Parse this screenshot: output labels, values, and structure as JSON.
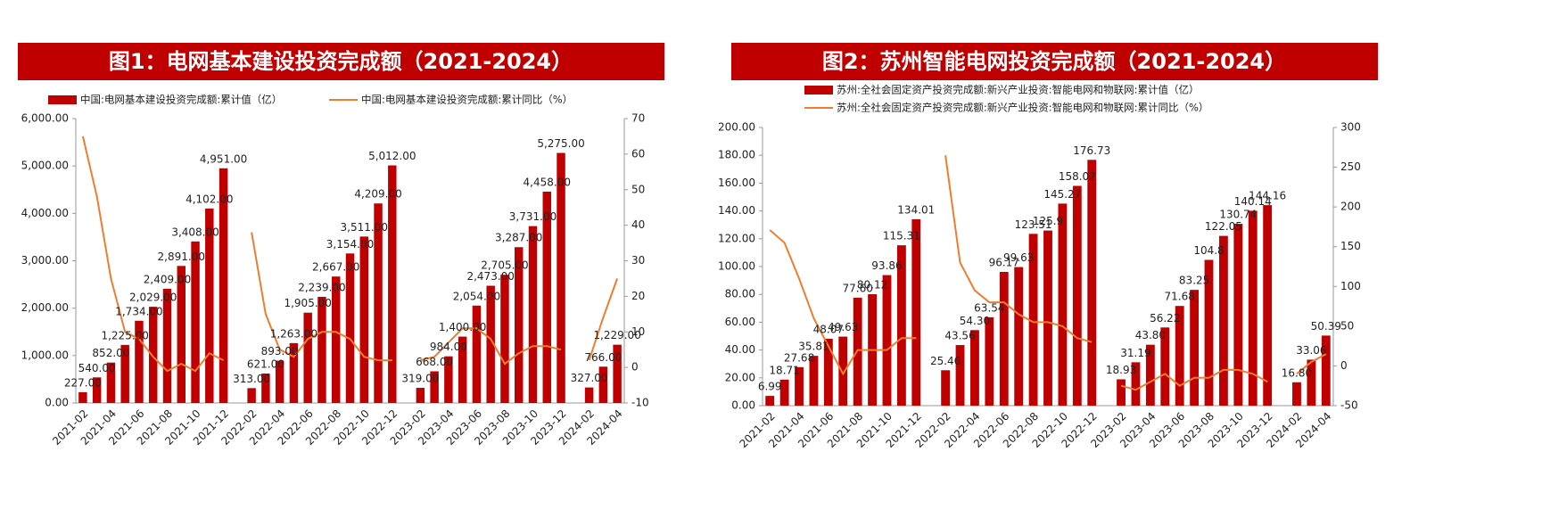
{
  "chart_data": [
    {
      "type": "combo",
      "title": "图1：电网基本建设投资完成额（2021-2024）",
      "categories": [
        "2021-02",
        null,
        "2021-04",
        null,
        "2021-06",
        null,
        "2021-08",
        null,
        "2021-10",
        null,
        "2021-12",
        null,
        "2022-02",
        null,
        "2022-04",
        null,
        "2022-06",
        null,
        "2022-08",
        null,
        "2022-10",
        null,
        "2022-12",
        null,
        "2023-02",
        null,
        "2023-04",
        null,
        "2023-06",
        null,
        "2023-08",
        null,
        "2023-10",
        null,
        "2023-12",
        null,
        "2024-02",
        null,
        "2024-04"
      ],
      "series": [
        {
          "name": "中国:电网基本建设投资完成额:累计值（亿）",
          "type": "bar",
          "color": "#c00000",
          "values": [
            227,
            540,
            852,
            1225,
            1734,
            2029,
            2409,
            2891,
            3408,
            4102,
            4951,
            null,
            313,
            621,
            893,
            1263,
            1905,
            2239,
            2667,
            3154,
            3511,
            4209,
            5012,
            null,
            319,
            668,
            984,
            1400,
            2054,
            2473,
            2705,
            3287,
            3731,
            4458,
            5275,
            null,
            327,
            766,
            1229
          ],
          "value_labels": [
            "227.00",
            "540.00",
            "852.00",
            "1,225.00",
            "1,734.00",
            "2,029.00",
            "2,409.00",
            "2,891.00",
            "3,408.00",
            "4,102.00",
            "4,951.00",
            null,
            "313.00",
            "621.00",
            "893.00",
            "1,263.00",
            "1,905.00",
            "2,239.00",
            "2,667.00",
            "3,154.00",
            "3,511.00",
            "4,209.00",
            "5,012.00",
            null,
            "319.00",
            "668.00",
            "984.00",
            "1,400.00",
            "2,054.00",
            "2,473.00",
            "2,705.00",
            "3,287.00",
            "3,731.00",
            "4,458.00",
            "5,275.00",
            null,
            "327.00",
            "766.00",
            "1,229.00"
          ]
        },
        {
          "name": "中国:电网基本建设投资完成额:累计同比（%）",
          "type": "line",
          "axis": "y2",
          "color": "#ed7d31",
          "values": [
            65,
            48,
            25,
            10,
            8,
            3,
            -1,
            1,
            -1,
            4,
            2,
            null,
            38,
            15,
            5,
            3,
            8,
            10,
            10,
            8,
            3,
            2,
            2,
            null,
            2,
            3,
            7,
            11,
            11,
            8,
            1,
            4,
            6,
            6,
            5,
            null,
            2,
            14,
            25
          ]
        }
      ],
      "ylim": [
        0,
        6000
      ],
      "yticks": [
        {
          "value": 0,
          "label": "0.00"
        },
        {
          "value": 1000,
          "label": "1,000.00"
        },
        {
          "value": 2000,
          "label": "2,000.00"
        },
        {
          "value": 3000,
          "label": "3,000.00"
        },
        {
          "value": 4000,
          "label": "4,000.00"
        },
        {
          "value": 5000,
          "label": "5,000.00"
        },
        {
          "value": 6000,
          "label": "6,000.00"
        }
      ],
      "y2lim": [
        -10,
        70
      ],
      "y2ticks": [
        -10,
        0,
        10,
        20,
        30,
        40,
        50,
        60,
        70
      ]
    },
    {
      "type": "combo",
      "title": "图2：苏州智能电网投资完成额（2021-2024）",
      "categories": [
        "2021-02",
        null,
        "2021-04",
        null,
        "2021-06",
        null,
        "2021-08",
        null,
        "2021-10",
        null,
        "2021-12",
        null,
        "2022-02",
        null,
        "2022-04",
        null,
        "2022-06",
        null,
        "2022-08",
        null,
        "2022-10",
        null,
        "2022-12",
        null,
        "2023-02",
        null,
        "2023-04",
        null,
        "2023-06",
        null,
        "2023-08",
        null,
        "2023-10",
        null,
        "2023-12",
        null,
        "2024-02",
        null,
        "2024-04"
      ],
      "series": [
        {
          "name": "苏州:全社会固定资产投资完成额:新兴产业投资:智能电网和物联网:累计值（亿）",
          "type": "bar",
          "color": "#c00000",
          "values": [
            6.99,
            18.71,
            27.68,
            35.81,
            48.07,
            49.63,
            77.6,
            80.12,
            93.86,
            115.31,
            134.01,
            null,
            25.46,
            43.56,
            54.3,
            63.54,
            96.17,
            99.63,
            123.51,
            125.9,
            145.27,
            158.02,
            176.73,
            null,
            18.93,
            31.19,
            43.8,
            56.22,
            71.68,
            83.25,
            104.8,
            122.05,
            130.74,
            140.14,
            144.16,
            null,
            16.8,
            33.06,
            50.39
          ],
          "value_labels": [
            "6.99",
            "18.71",
            "27.68",
            "35.81",
            "48.07",
            "49.63",
            "77.60",
            "80.12",
            "93.86",
            "115.31",
            "134.01",
            null,
            "25.46",
            "43.56",
            "54.30",
            "63.54",
            "96.17",
            "99.63",
            "123.51",
            "125.9",
            "145.27",
            "158.02",
            "176.73",
            null,
            "18.93",
            "31.19",
            "43.80",
            "56.22",
            "71.68",
            "83.25",
            "104.8",
            "122.05",
            "130.74",
            "140.14",
            "144.16",
            null,
            "16.80",
            "33.06",
            "50.39"
          ]
        },
        {
          "name": "苏州:全社会固定资产投资完成额:新兴产业投资:智能电网和物联网:累计同比（%）",
          "type": "line",
          "axis": "y2",
          "color": "#ed7d31",
          "values": [
            171,
            155,
            110,
            60,
            25,
            -10,
            20,
            20,
            20,
            35,
            35,
            null,
            265,
            130,
            95,
            80,
            80,
            65,
            55,
            55,
            50,
            35,
            30,
            null,
            -25,
            -30,
            -20,
            -10,
            -25,
            -15,
            -15,
            -5,
            -5,
            -10,
            -20,
            null,
            -10,
            5,
            15
          ]
        }
      ],
      "ylim": [
        0,
        200
      ],
      "yticks": [
        {
          "value": 0,
          "label": "0.00"
        },
        {
          "value": 20,
          "label": "20.00"
        },
        {
          "value": 40,
          "label": "40.00"
        },
        {
          "value": 60,
          "label": "60.00"
        },
        {
          "value": 80,
          "label": "80.00"
        },
        {
          "value": 100,
          "label": "100.00"
        },
        {
          "value": 120,
          "label": "120.00"
        },
        {
          "value": 140,
          "label": "140.00"
        },
        {
          "value": 160,
          "label": "160.00"
        },
        {
          "value": 180,
          "label": "180.00"
        },
        {
          "value": 200,
          "label": "200.00"
        }
      ],
      "y2lim": [
        -50,
        300
      ],
      "y2ticks": [
        -50,
        0,
        50,
        100,
        150,
        200,
        250,
        300
      ]
    }
  ]
}
